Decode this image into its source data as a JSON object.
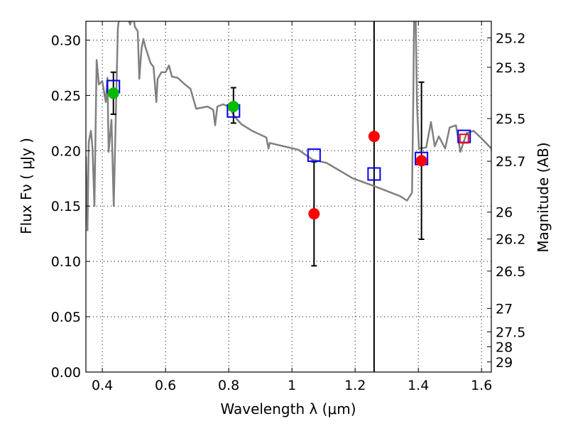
{
  "chart_data": {
    "type": "scatter",
    "title": "",
    "xlabel": "Wavelength  λ (μm)",
    "ylabel": "Flux  Fν ( μJy )",
    "ylabel_right": "Magnitude (AB)",
    "xlim": [
      0.348,
      1.631
    ],
    "ylim": [
      0.0,
      0.317
    ],
    "grid": true,
    "x_ticks": [
      0.4,
      0.6,
      0.8,
      1.0,
      1.2,
      1.4,
      1.6
    ],
    "x_tick_labels": [
      "0.4",
      "0.6",
      "0.8",
      "1",
      "1.2",
      "1.4",
      "1.6"
    ],
    "y_ticks": [
      0.0,
      0.05,
      0.1,
      0.15,
      0.2,
      0.25,
      0.3
    ],
    "y_tick_labels": [
      "0.00",
      "0.05",
      "0.10",
      "0.15",
      "0.20",
      "0.25",
      "0.30"
    ],
    "right_ticks": [
      25.2,
      25.3,
      25.5,
      25.7,
      26,
      26.2,
      26.5,
      27,
      27.5,
      28,
      29
    ],
    "right_tick_labels": [
      "25.2",
      "25.3",
      "25.5",
      "25.7",
      "26",
      "26.2",
      "26.5",
      "27",
      "27.5",
      "28",
      "29"
    ],
    "ab_zeropoint_ujy": 23.9,
    "vertical_line_x": 1.26,
    "colors": {
      "spectrum": "#808080",
      "model": "#0000ff",
      "detected": "#00bb00",
      "other": "#ff0000",
      "errorbar": "#000000"
    },
    "series": [
      {
        "name": "spectrum",
        "kind": "line",
        "points": [
          [
            0.348,
            0.195
          ],
          [
            0.353,
            0.128
          ],
          [
            0.357,
            0.208
          ],
          [
            0.364,
            0.218
          ],
          [
            0.369,
            0.202
          ],
          [
            0.375,
            0.15
          ],
          [
            0.382,
            0.282
          ],
          [
            0.389,
            0.26
          ],
          [
            0.4,
            0.263
          ],
          [
            0.411,
            0.244
          ],
          [
            0.416,
            0.266
          ],
          [
            0.42,
            0.199
          ],
          [
            0.429,
            0.228
          ],
          [
            0.436,
            0.15
          ],
          [
            0.443,
            0.237
          ],
          [
            0.449,
            0.311
          ],
          [
            0.458,
            0.33
          ],
          [
            0.476,
            0.324
          ],
          [
            0.488,
            0.314
          ],
          [
            0.497,
            0.323
          ],
          [
            0.503,
            0.312
          ],
          [
            0.512,
            0.308
          ],
          [
            0.517,
            0.265
          ],
          [
            0.524,
            0.292
          ],
          [
            0.53,
            0.301
          ],
          [
            0.537,
            0.293
          ],
          [
            0.553,
            0.279
          ],
          [
            0.562,
            0.276
          ],
          [
            0.571,
            0.244
          ],
          [
            0.575,
            0.265
          ],
          [
            0.587,
            0.271
          ],
          [
            0.6,
            0.271
          ],
          [
            0.611,
            0.277
          ],
          [
            0.62,
            0.267
          ],
          [
            0.638,
            0.266
          ],
          [
            0.661,
            0.26
          ],
          [
            0.679,
            0.256
          ],
          [
            0.697,
            0.238
          ],
          [
            0.715,
            0.239
          ],
          [
            0.733,
            0.24
          ],
          [
            0.751,
            0.237
          ],
          [
            0.757,
            0.223
          ],
          [
            0.764,
            0.24
          ],
          [
            0.782,
            0.242
          ],
          [
            0.8,
            0.24
          ],
          [
            0.818,
            0.231
          ],
          [
            0.84,
            0.224
          ],
          [
            0.874,
            0.218
          ],
          [
            0.919,
            0.212
          ],
          [
            0.926,
            0.202
          ],
          [
            0.93,
            0.207
          ],
          [
            0.975,
            0.204
          ],
          [
            1.02,
            0.201
          ],
          [
            1.065,
            0.192
          ],
          [
            1.11,
            0.189
          ],
          [
            1.193,
            0.175
          ],
          [
            1.261,
            0.168
          ],
          [
            1.342,
            0.159
          ],
          [
            1.364,
            0.155
          ],
          [
            1.38,
            0.162
          ],
          [
            1.384,
            0.247
          ],
          [
            1.387,
            0.33
          ],
          [
            1.391,
            0.33
          ],
          [
            1.396,
            0.24
          ],
          [
            1.402,
            0.202
          ],
          [
            1.425,
            0.203
          ],
          [
            1.44,
            0.226
          ],
          [
            1.452,
            0.204
          ],
          [
            1.465,
            0.213
          ],
          [
            1.485,
            0.202
          ],
          [
            1.499,
            0.221
          ],
          [
            1.519,
            0.223
          ],
          [
            1.533,
            0.199
          ],
          [
            1.553,
            0.216
          ],
          [
            1.575,
            0.218
          ],
          [
            1.604,
            0.21
          ],
          [
            1.631,
            0.202
          ]
        ]
      },
      {
        "name": "model-photometry",
        "kind": "open-square",
        "color": "#0000ff",
        "points": [
          [
            0.435,
            0.258
          ],
          [
            0.815,
            0.236
          ],
          [
            1.07,
            0.196
          ],
          [
            1.26,
            0.179
          ],
          [
            1.41,
            0.193
          ],
          [
            1.545,
            0.213
          ]
        ]
      },
      {
        "name": "green-detections",
        "kind": "circle",
        "color": "#00bb00",
        "points": [
          [
            0.435,
            0.252,
            0.233,
            0.271
          ],
          [
            0.815,
            0.24,
            0.225,
            0.257
          ]
        ]
      },
      {
        "name": "red-points",
        "kind": "circle",
        "color": "#ff0000",
        "points": [
          [
            1.07,
            0.143,
            0.096,
            0.19
          ],
          [
            1.26,
            0.213,
            null,
            null
          ],
          [
            1.41,
            0.191,
            0.12,
            0.262
          ]
        ]
      },
      {
        "name": "red-square",
        "kind": "open-square",
        "color": "#ff0000",
        "points": [
          [
            1.545,
            0.211
          ]
        ]
      }
    ]
  }
}
